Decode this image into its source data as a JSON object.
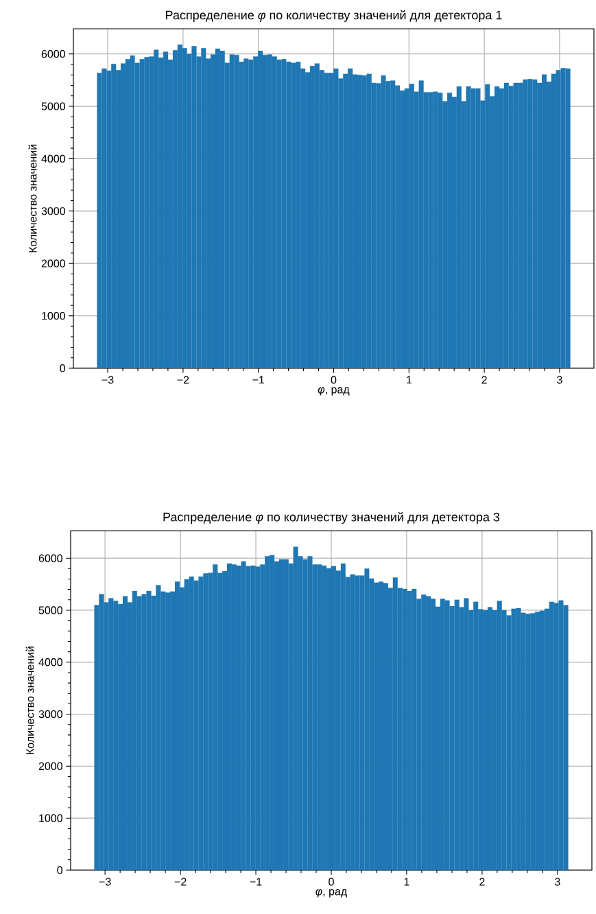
{
  "chart_data": [
    {
      "type": "histogram",
      "title": "Распределение *φ*  по количеству значений для детектора 1",
      "xlabel": "*φ*, рад",
      "ylabel": "Количество значений",
      "color": "#1f77b4",
      "grid": true,
      "bins": [
        -3.1416,
        -3.0788,
        -3.0159,
        -2.9531,
        -2.8903,
        -2.8274,
        -2.7646,
        -2.7018,
        -2.6389,
        -2.5761,
        -2.5133,
        -2.4504,
        -2.3876,
        -2.3248,
        -2.2619,
        -2.1991,
        -2.1363,
        -2.0735,
        -2.0106,
        -1.9478,
        -1.885,
        -1.8221,
        -1.7593,
        -1.6965,
        -1.6336,
        -1.5708,
        -1.508,
        -1.4451,
        -1.3823,
        -1.3195,
        -1.2566,
        -1.1938,
        -1.131,
        -1.0681,
        -1.0053,
        -0.9425,
        -0.8796,
        -0.8168,
        -0.754,
        -0.6912,
        -0.6283,
        -0.5655,
        -0.5027,
        -0.4398,
        -0.377,
        -0.3142,
        -0.2513,
        -0.1885,
        -0.1257,
        -0.0628,
        0,
        0.0628,
        0.1257,
        0.1885,
        0.2513,
        0.3142,
        0.377,
        0.4398,
        0.5027,
        0.5655,
        0.6283,
        0.6912,
        0.754,
        0.8168,
        0.8796,
        0.9425,
        1.0053,
        1.0681,
        1.131,
        1.1938,
        1.2566,
        1.3195,
        1.3823,
        1.4451,
        1.508,
        1.5708,
        1.6336,
        1.6965,
        1.7593,
        1.8221,
        1.885,
        1.9478,
        2.0106,
        2.0735,
        2.1363,
        2.1991,
        2.2619,
        2.3248,
        2.3876,
        2.4504,
        2.5133,
        2.5761,
        2.6389,
        2.7018,
        2.7646,
        2.8274,
        2.8903,
        2.9531,
        3.0159,
        3.0788,
        3.1416
      ],
      "values": [
        5640,
        5720,
        5680,
        5810,
        5690,
        5820,
        5900,
        5970,
        5830,
        5900,
        5940,
        5950,
        6080,
        5930,
        6040,
        5890,
        6070,
        6180,
        6110,
        6000,
        6150,
        5950,
        6110,
        5910,
        5990,
        6100,
        6060,
        5830,
        5990,
        5980,
        5850,
        5910,
        5890,
        5950,
        6060,
        5980,
        5990,
        5950,
        5890,
        5900,
        5850,
        5830,
        5850,
        5720,
        5650,
        5770,
        5820,
        5690,
        5640,
        5640,
        5720,
        5530,
        5620,
        5720,
        5610,
        5600,
        5590,
        5620,
        5450,
        5440,
        5590,
        5480,
        5490,
        5400,
        5300,
        5340,
        5430,
        5280,
        5490,
        5270,
        5270,
        5280,
        5260,
        5100,
        5260,
        5180,
        5380,
        5100,
        5380,
        5340,
        5340,
        5110,
        5420,
        5190,
        5380,
        5340,
        5450,
        5390,
        5450,
        5450,
        5510,
        5520,
        5510,
        5450,
        5610,
        5470,
        5620,
        5690,
        5730,
        5720
      ],
      "xlim": [
        -3.456,
        3.456
      ],
      "ylim": [
        0,
        6480
      ],
      "xticks": [
        {
          "value": -3,
          "label": "−3"
        },
        {
          "value": -2,
          "label": "−2"
        },
        {
          "value": -1,
          "label": "−1"
        },
        0,
        1,
        2,
        3
      ],
      "yticks": [
        0,
        1000,
        2000,
        3000,
        4000,
        5000,
        6000
      ]
    },
    {
      "type": "histogram",
      "title": "Распределение *φ*  по количеству значений для детектора 3",
      "xlabel": "*φ*, рад",
      "ylabel": "Количество значений",
      "color": "#1f77b4",
      "grid": true,
      "bins": [
        -3.1416,
        -3.0788,
        -3.0159,
        -2.9531,
        -2.8903,
        -2.8274,
        -2.7646,
        -2.7018,
        -2.6389,
        -2.5761,
        -2.5133,
        -2.4504,
        -2.3876,
        -2.3248,
        -2.2619,
        -2.1991,
        -2.1363,
        -2.0735,
        -2.0106,
        -1.9478,
        -1.885,
        -1.8221,
        -1.7593,
        -1.6965,
        -1.6336,
        -1.5708,
        -1.508,
        -1.4451,
        -1.3823,
        -1.3195,
        -1.2566,
        -1.1938,
        -1.131,
        -1.0681,
        -1.0053,
        -0.9425,
        -0.8796,
        -0.8168,
        -0.754,
        -0.6912,
        -0.6283,
        -0.5655,
        -0.5027,
        -0.4398,
        -0.377,
        -0.3142,
        -0.2513,
        -0.1885,
        -0.1257,
        -0.0628,
        0,
        0.0628,
        0.1257,
        0.1885,
        0.2513,
        0.3142,
        0.377,
        0.4398,
        0.5027,
        0.5655,
        0.6283,
        0.6912,
        0.754,
        0.8168,
        0.8796,
        0.9425,
        1.0053,
        1.0681,
        1.131,
        1.1938,
        1.2566,
        1.3195,
        1.3823,
        1.4451,
        1.508,
        1.5708,
        1.6336,
        1.6965,
        1.7593,
        1.8221,
        1.885,
        1.9478,
        2.0106,
        2.0735,
        2.1363,
        2.1991,
        2.2619,
        2.3248,
        2.3876,
        2.4504,
        2.5133,
        2.5761,
        2.6389,
        2.7018,
        2.7646,
        2.8274,
        2.8903,
        2.9531,
        3.0159,
        3.0788,
        3.1416
      ],
      "values": [
        5100,
        5310,
        5150,
        5230,
        5180,
        5120,
        5270,
        5150,
        5370,
        5270,
        5310,
        5370,
        5280,
        5480,
        5360,
        5340,
        5360,
        5550,
        5440,
        5600,
        5650,
        5570,
        5650,
        5710,
        5720,
        5880,
        5720,
        5750,
        5900,
        5880,
        5860,
        5940,
        5850,
        5860,
        5840,
        5880,
        6040,
        6060,
        5940,
        5980,
        5980,
        5900,
        6220,
        6040,
        5980,
        6040,
        5880,
        5880,
        5860,
        5810,
        5850,
        5760,
        5900,
        5640,
        5690,
        5670,
        5670,
        5800,
        5610,
        5530,
        5550,
        5520,
        5430,
        5630,
        5430,
        5410,
        5370,
        5410,
        5220,
        5300,
        5270,
        5220,
        5070,
        5220,
        5190,
        5080,
        5200,
        5060,
        5230,
        5000,
        5160,
        5020,
        5000,
        5060,
        5000,
        5180,
        5000,
        4900,
        5030,
        5040,
        4950,
        4930,
        4940,
        4970,
        4990,
        5030,
        5160,
        5140,
        5190,
        5100
      ],
      "xlim": [
        -3.456,
        3.456
      ],
      "ylim": [
        0,
        6530
      ],
      "xticks": [
        {
          "value": -3,
          "label": "−3"
        },
        {
          "value": -2,
          "label": "−2"
        },
        {
          "value": -1,
          "label": "−1"
        },
        0,
        1,
        2,
        3
      ],
      "yticks": [
        0,
        1000,
        2000,
        3000,
        4000,
        5000,
        6000
      ]
    }
  ]
}
